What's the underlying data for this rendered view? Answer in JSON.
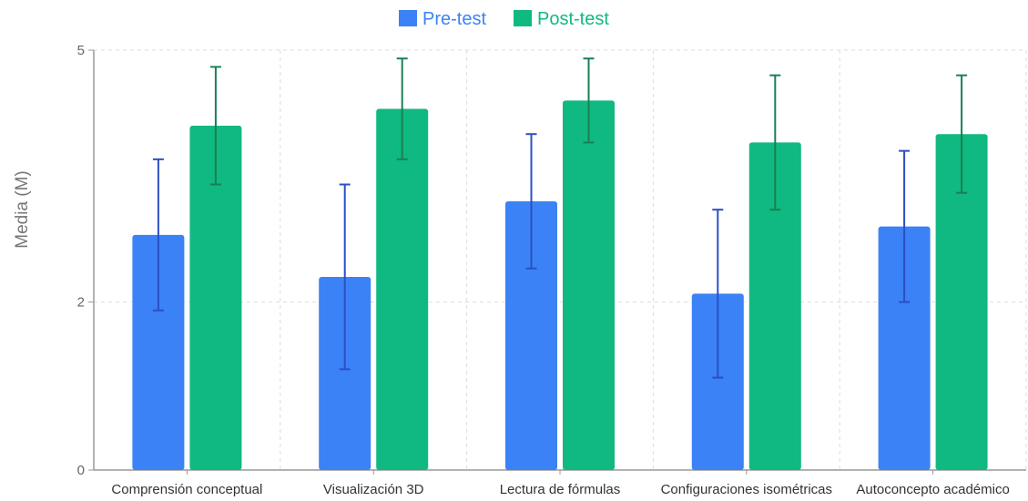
{
  "chart_data": {
    "type": "bar",
    "ylabel": "Media (M)",
    "xlabel": "",
    "title": "",
    "ylim": [
      0,
      5
    ],
    "yticks": [
      0,
      2,
      5
    ],
    "grid": true,
    "legend_position": "top-center",
    "categories": [
      "Comprensión conceptual",
      "Visualización 3D",
      "Lectura de fórmulas",
      "Configuraciones isométricas",
      "Autoconcepto académico"
    ],
    "series": [
      {
        "name": "Pre-test",
        "color": "#3b82f6",
        "error_color": "#2b4fc4",
        "values": [
          2.8,
          2.3,
          3.2,
          2.1,
          2.9
        ],
        "errors": [
          0.9,
          1.1,
          0.8,
          1.0,
          0.9
        ]
      },
      {
        "name": "Post-test",
        "color": "#10b981",
        "error_color": "#1a7f55",
        "values": [
          4.1,
          4.3,
          4.4,
          3.9,
          4.0
        ],
        "errors": [
          0.7,
          0.6,
          0.5,
          0.8,
          0.7
        ]
      }
    ]
  }
}
